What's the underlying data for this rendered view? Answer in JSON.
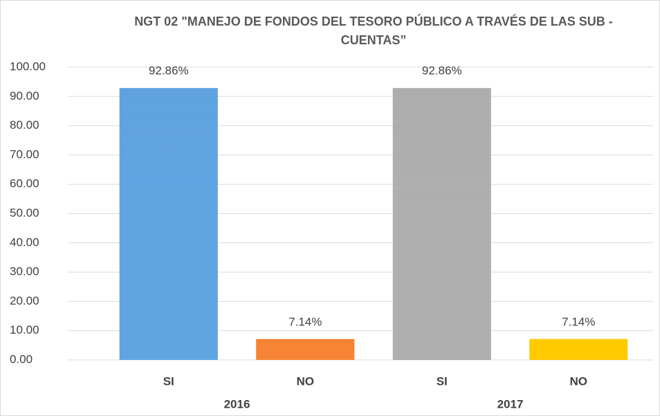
{
  "chart_data": {
    "type": "bar",
    "title": "NGT 02 \"MANEJO DE FONDOS DEL TESORO PÚBLICO A TRAVÉS DE LAS SUB - CUENTAS”",
    "categories": [
      "SI",
      "NO",
      "SI",
      "NO"
    ],
    "groups": [
      "2016",
      "2017"
    ],
    "values": [
      92.86,
      7.14,
      92.86,
      7.14
    ],
    "value_labels": [
      "92.86%",
      "7.14%",
      "92.86%",
      "7.14%"
    ],
    "colors": [
      "#5b9bd5",
      "#ed7d31",
      "#a5a5a5",
      "#ffc000"
    ],
    "ylim": [
      0,
      100
    ],
    "yticks": [
      {
        "value": 0,
        "label": "0.00"
      },
      {
        "value": 10,
        "label": "10.00"
      },
      {
        "value": 20,
        "label": "20.00"
      },
      {
        "value": 30,
        "label": "30.00"
      },
      {
        "value": 40,
        "label": "40.00"
      },
      {
        "value": 50,
        "label": "50.00"
      },
      {
        "value": 60,
        "label": "60.00"
      },
      {
        "value": 70,
        "label": "70.00"
      },
      {
        "value": 80,
        "label": "80.00"
      },
      {
        "value": 90,
        "label": "90.00"
      },
      {
        "value": 100,
        "label": "100.00"
      }
    ],
    "grid": true
  }
}
